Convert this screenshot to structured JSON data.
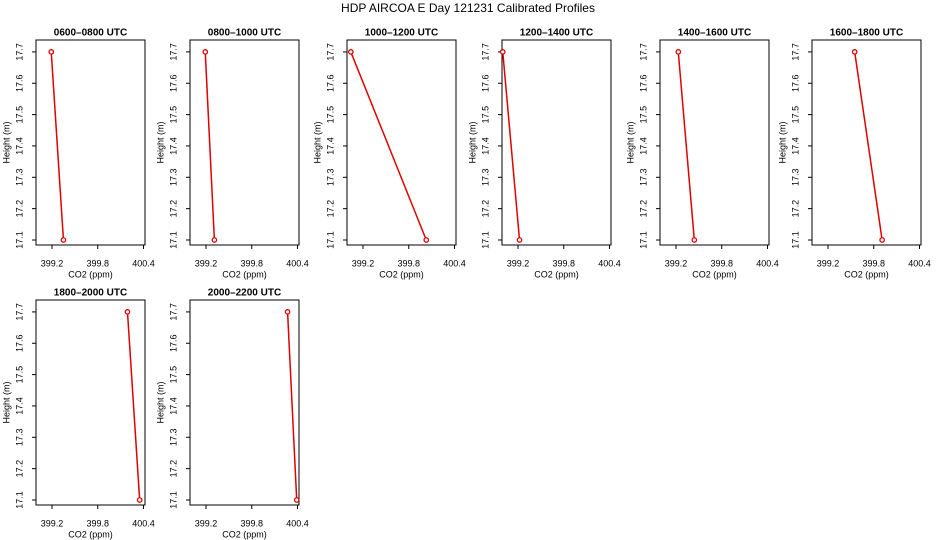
{
  "title": "HDP AIRCOA E  Day 121231  Calibrated Profiles",
  "chart_data": [
    {
      "type": "line",
      "title": "0600–0800 UTC",
      "xlabel": "CO2 (ppm)",
      "ylabel": "Height (m)",
      "xlim": [
        398.99,
        400.42
      ],
      "ylim": [
        17.084,
        17.738
      ],
      "xticks": [
        399.2,
        399.8,
        400.4
      ],
      "yticks": [
        17.1,
        17.2,
        17.3,
        17.4,
        17.5,
        17.6,
        17.7
      ],
      "series": [
        {
          "color": "#e00000",
          "x": [
            399.19,
            399.35
          ],
          "values": [
            17.7,
            17.1
          ]
        }
      ]
    },
    {
      "type": "line",
      "title": "0800–1000 UTC",
      "xlabel": "CO2 (ppm)",
      "ylabel": "Height (m)",
      "xlim": [
        398.99,
        400.42
      ],
      "ylim": [
        17.084,
        17.738
      ],
      "xticks": [
        399.2,
        399.8,
        400.4
      ],
      "yticks": [
        17.1,
        17.2,
        17.3,
        17.4,
        17.5,
        17.6,
        17.7
      ],
      "series": [
        {
          "color": "#e00000",
          "x": [
            399.19,
            399.31
          ],
          "values": [
            17.7,
            17.1
          ]
        }
      ]
    },
    {
      "type": "line",
      "title": "1000–1200 UTC",
      "xlabel": "CO2 (ppm)",
      "ylabel": "Height (m)",
      "xlim": [
        398.99,
        400.42
      ],
      "ylim": [
        17.084,
        17.738
      ],
      "xticks": [
        399.2,
        399.8,
        400.4
      ],
      "yticks": [
        17.1,
        17.2,
        17.3,
        17.4,
        17.5,
        17.6,
        17.7
      ],
      "series": [
        {
          "color": "#e00000",
          "x": [
            399.04,
            400.03
          ],
          "values": [
            17.7,
            17.1
          ]
        }
      ]
    },
    {
      "type": "line",
      "title": "1200–1400 UTC",
      "xlabel": "CO2 (ppm)",
      "ylabel": "Height (m)",
      "xlim": [
        398.99,
        400.42
      ],
      "ylim": [
        17.084,
        17.738
      ],
      "xticks": [
        399.2,
        399.8,
        400.4
      ],
      "yticks": [
        17.1,
        17.2,
        17.3,
        17.4,
        17.5,
        17.6,
        17.7
      ],
      "series": [
        {
          "color": "#e00000",
          "x": [
            399.0,
            399.22
          ],
          "values": [
            17.7,
            17.1
          ]
        }
      ]
    },
    {
      "type": "line",
      "title": "1400–1600 UTC",
      "xlabel": "CO2 (ppm)",
      "ylabel": "Height (m)",
      "xlim": [
        398.99,
        400.42
      ],
      "ylim": [
        17.084,
        17.738
      ],
      "xticks": [
        399.2,
        399.8,
        400.4
      ],
      "yticks": [
        17.1,
        17.2,
        17.3,
        17.4,
        17.5,
        17.6,
        17.7
      ],
      "series": [
        {
          "color": "#e00000",
          "x": [
            399.23,
            399.44
          ],
          "values": [
            17.7,
            17.1
          ]
        }
      ]
    },
    {
      "type": "line",
      "title": "1600–1800 UTC",
      "xlabel": "CO2 (ppm)",
      "ylabel": "Height (m)",
      "xlim": [
        398.99,
        400.42
      ],
      "ylim": [
        17.084,
        17.738
      ],
      "xticks": [
        399.2,
        399.8,
        400.4
      ],
      "yticks": [
        17.1,
        17.2,
        17.3,
        17.4,
        17.5,
        17.6,
        17.7
      ],
      "series": [
        {
          "color": "#e00000",
          "x": [
            399.55,
            399.91
          ],
          "values": [
            17.7,
            17.1
          ]
        }
      ]
    },
    {
      "type": "line",
      "title": "1800–2000 UTC",
      "xlabel": "CO2 (ppm)",
      "ylabel": "Height (m)",
      "xlim": [
        398.99,
        400.42
      ],
      "ylim": [
        17.084,
        17.738
      ],
      "xticks": [
        399.2,
        399.8,
        400.4
      ],
      "yticks": [
        17.1,
        17.2,
        17.3,
        17.4,
        17.5,
        17.6,
        17.7
      ],
      "series": [
        {
          "color": "#e00000",
          "x": [
            400.19,
            400.35
          ],
          "values": [
            17.7,
            17.1
          ]
        }
      ]
    },
    {
      "type": "line",
      "title": "2000–2200 UTC",
      "xlabel": "CO2 (ppm)",
      "ylabel": "Height (m)",
      "xlim": [
        398.99,
        400.42
      ],
      "ylim": [
        17.084,
        17.738
      ],
      "xticks": [
        399.2,
        399.8,
        400.4
      ],
      "yticks": [
        17.1,
        17.2,
        17.3,
        17.4,
        17.5,
        17.6,
        17.7
      ],
      "series": [
        {
          "color": "#e00000",
          "x": [
            400.27,
            400.39
          ],
          "values": [
            17.7,
            17.1
          ]
        }
      ]
    }
  ]
}
